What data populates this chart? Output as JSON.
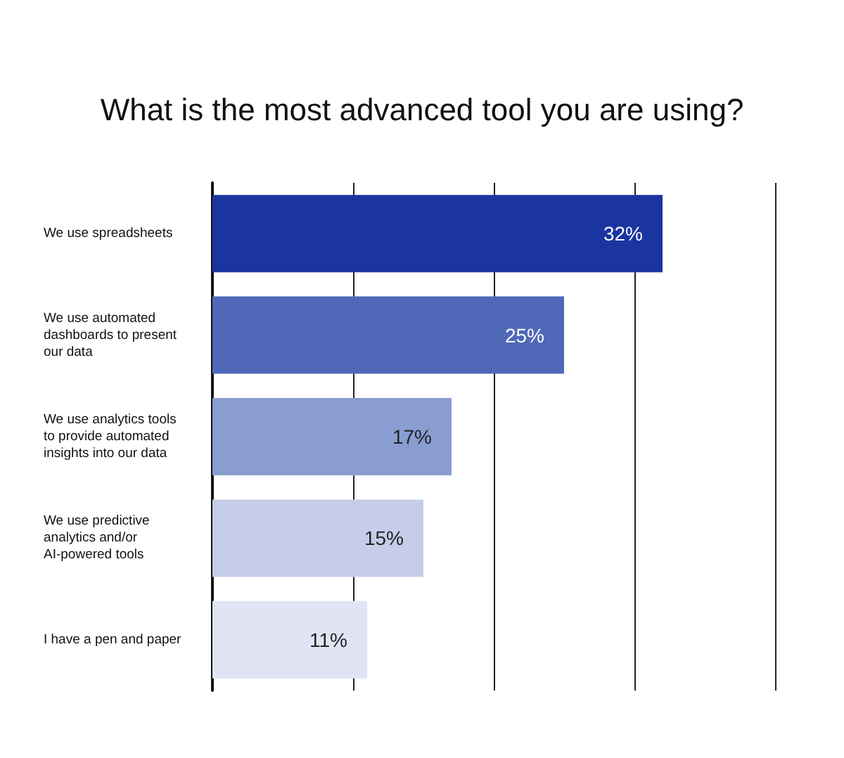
{
  "chart_data": {
    "type": "bar",
    "orientation": "horizontal",
    "title": "What is the most advanced tool you are using?",
    "categories": [
      "We use spreadsheets",
      "We use automated dashboards to present our data",
      "We use analytics tools to provide automated insights into our data",
      "We use predictive analytics and/or AI-powered tools",
      "I have a pen and paper"
    ],
    "values": [
      32,
      25,
      17,
      15,
      11
    ],
    "colors": [
      "#1a35a0",
      "#4f68b8",
      "#8a9dd1",
      "#c5cde9",
      "#e0e4f4"
    ],
    "value_labels": [
      "32%",
      "25%",
      "17%",
      "15%",
      "11%"
    ],
    "xlim": [
      0,
      40
    ],
    "xticks": [
      {
        "value": 10,
        "label": null
      },
      {
        "value": 20,
        "label": null
      },
      {
        "value": 30,
        "label": null
      },
      {
        "value": 40,
        "label": null
      }
    ],
    "grid": "x",
    "tick_labels": "y"
  }
}
